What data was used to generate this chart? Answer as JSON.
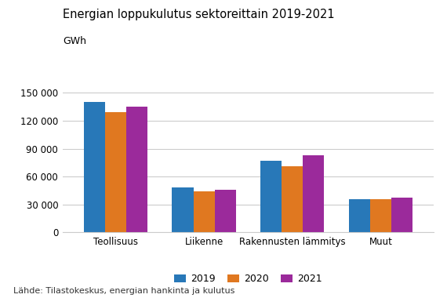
{
  "title": "Energian loppukulutus sektoreittain 2019-2021",
  "ylabel": "GWh",
  "categories": [
    "Teollisuus",
    "Liikenne",
    "Rakennusten lämmitys",
    "Muut"
  ],
  "series": {
    "2019": [
      140000,
      48000,
      77000,
      36000
    ],
    "2020": [
      129000,
      44000,
      71000,
      36000
    ],
    "2021": [
      135000,
      46000,
      83000,
      37000
    ]
  },
  "colors": {
    "2019": "#2878b8",
    "2020": "#e07820",
    "2021": "#9b2a9b"
  },
  "ylim": [
    0,
    160000
  ],
  "yticks": [
    0,
    30000,
    60000,
    90000,
    120000,
    150000
  ],
  "ytick_labels": [
    "0",
    "30 000",
    "60 000",
    "90 000",
    "120 000",
    "150 000"
  ],
  "legend_labels": [
    "2019",
    "2020",
    "2021"
  ],
  "source_text": "Lähde: Tilastokeskus, energian hankinta ja kulutus",
  "background_color": "#ffffff",
  "grid_color": "#cccccc",
  "title_fontsize": 10.5,
  "ylabel_fontsize": 9,
  "tick_fontsize": 8.5,
  "legend_fontsize": 9,
  "source_fontsize": 8
}
